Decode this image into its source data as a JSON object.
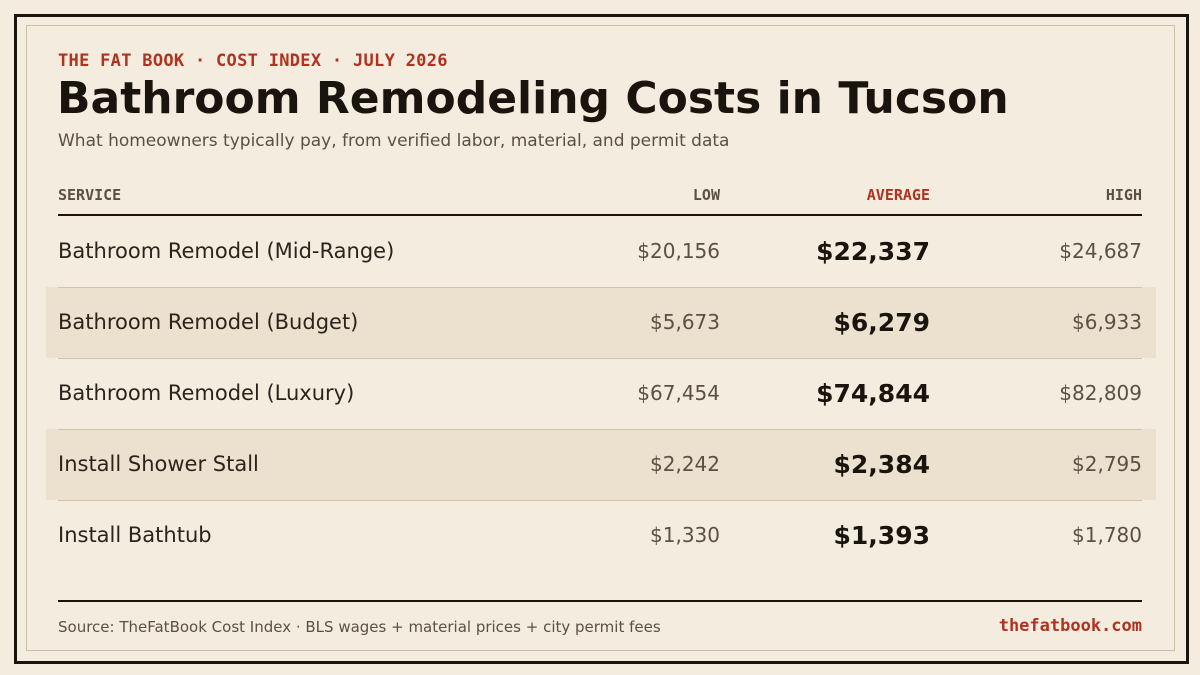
{
  "header": {
    "kicker": "THE FAT BOOK · COST INDEX · JULY 2026",
    "title": "Bathroom Remodeling Costs in Tucson",
    "subtitle": "What homeowners typically pay, from verified labor, material, and permit data"
  },
  "table": {
    "columns": {
      "service": "SERVICE",
      "low": "LOW",
      "average": "AVERAGE",
      "high": "HIGH"
    },
    "rows": [
      {
        "service": "Bathroom Remodel (Mid-Range)",
        "low": "$20,156",
        "average": "$22,337",
        "high": "$24,687"
      },
      {
        "service": "Bathroom Remodel (Budget)",
        "low": "$5,673",
        "average": "$6,279",
        "high": "$6,933"
      },
      {
        "service": "Bathroom Remodel (Luxury)",
        "low": "$67,454",
        "average": "$74,844",
        "high": "$82,809"
      },
      {
        "service": "Install Shower Stall",
        "low": "$2,242",
        "average": "$2,384",
        "high": "$2,795"
      },
      {
        "service": "Install Bathtub",
        "low": "$1,330",
        "average": "$1,393",
        "high": "$1,780"
      }
    ]
  },
  "footer": {
    "source": "Source: TheFatBook Cost Index · BLS wages + material prices + city permit fees",
    "site": "thefatbook.com"
  },
  "colors": {
    "background": "#f4ecde",
    "accent": "#b0321f",
    "ink": "#1a140e",
    "row_shade": "#ece1ce"
  }
}
